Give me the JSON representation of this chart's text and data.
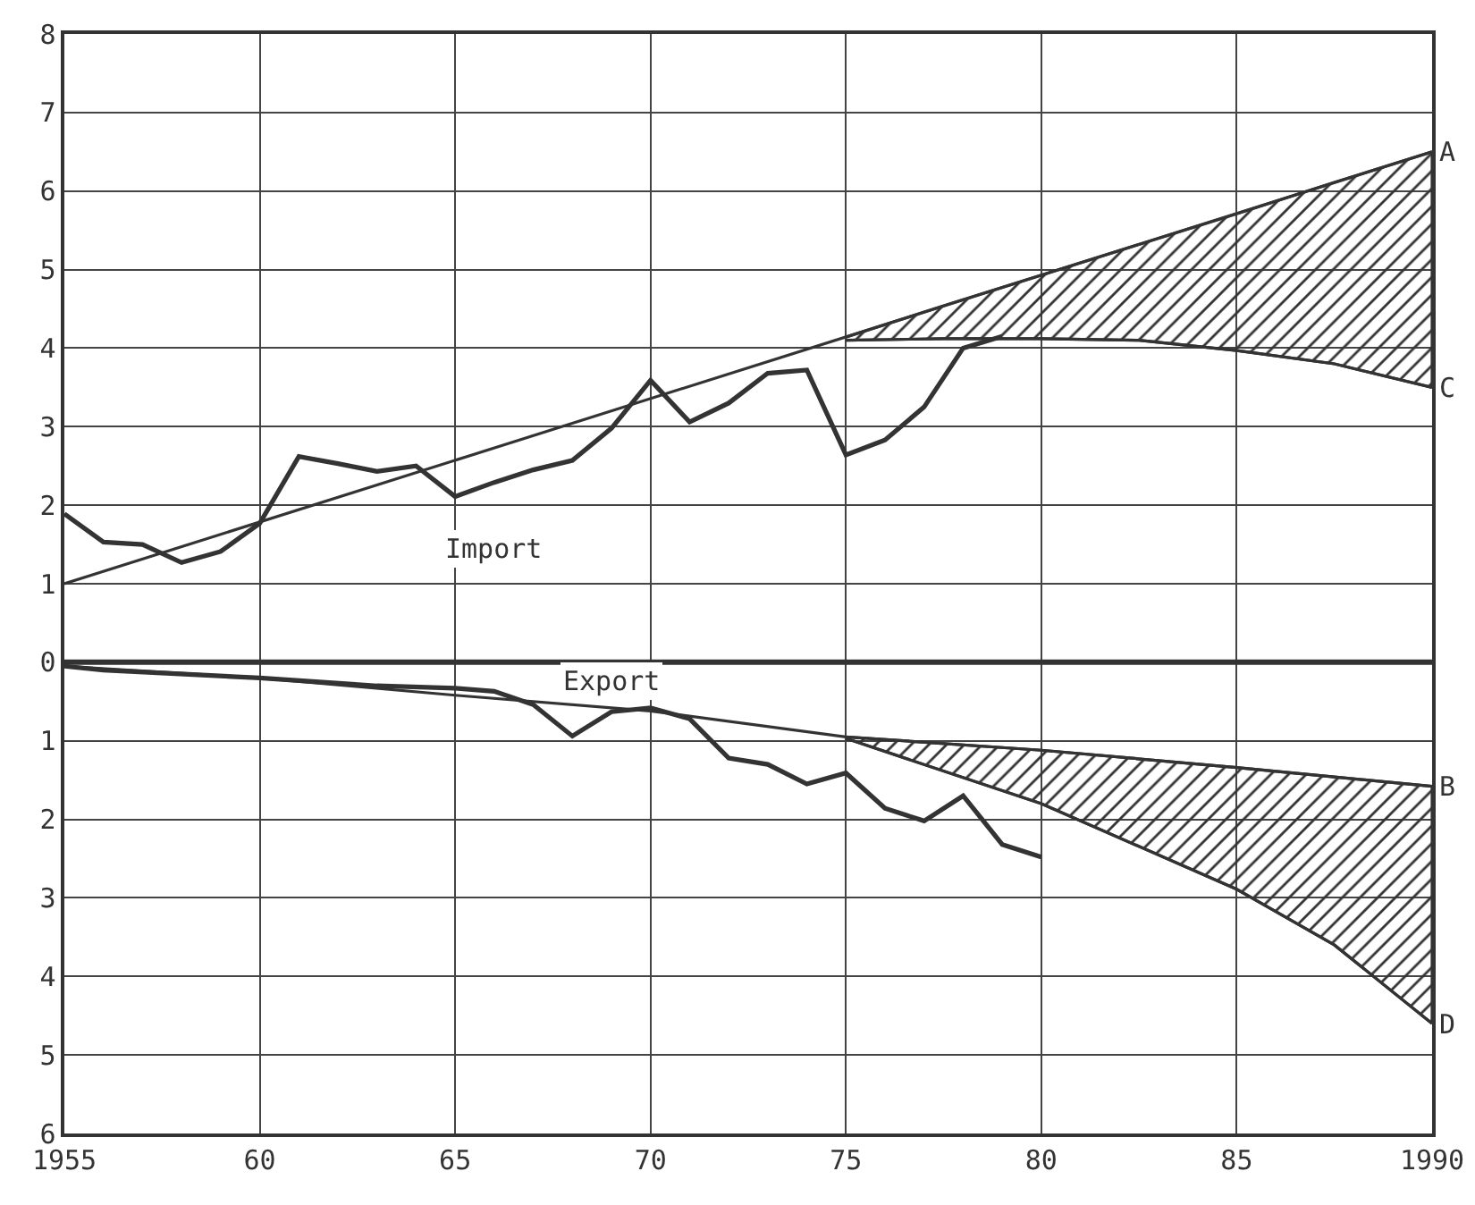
{
  "chart_data": {
    "type": "line",
    "xlim": [
      1955,
      1990
    ],
    "ylim": [
      -6,
      8
    ],
    "xticks": [
      1955,
      {
        "value": 1960,
        "label": "60"
      },
      {
        "value": 1965,
        "label": "65"
      },
      {
        "value": 1970,
        "label": "70"
      },
      {
        "value": 1975,
        "label": "75"
      },
      {
        "value": 1980,
        "label": "80"
      },
      {
        "value": 1985,
        "label": "85"
      },
      1990
    ],
    "yticks": [
      8,
      7,
      6,
      5,
      4,
      3,
      2,
      1,
      0,
      {
        "value": -1,
        "label": "1"
      },
      {
        "value": -2,
        "label": "2"
      },
      {
        "value": -3,
        "label": "3"
      },
      {
        "value": -4,
        "label": "4"
      },
      {
        "value": -5,
        "label": "5"
      },
      {
        "value": -6,
        "label": "6"
      }
    ],
    "grid": true,
    "legend": false,
    "marker": "none",
    "line_style": "solid",
    "ref_lines": [
      {
        "axis": "y",
        "value": 0,
        "color": "#333333"
      }
    ],
    "series": [
      {
        "name": "Import",
        "color": "#333333",
        "x": [
          1955,
          1956,
          1957,
          1958,
          1959,
          1960,
          1961,
          1962,
          1963,
          1964,
          1965,
          1966,
          1967,
          1968,
          1969,
          1970,
          1971,
          1972,
          1973,
          1974,
          1975,
          1976,
          1977,
          1978,
          1979
        ],
        "values": [
          1.89,
          1.53,
          1.5,
          1.27,
          1.41,
          1.77,
          2.62,
          2.53,
          2.43,
          2.5,
          2.11,
          2.29,
          2.45,
          2.57,
          2.98,
          3.59,
          3.06,
          3.3,
          3.68,
          3.72,
          2.64,
          2.83,
          3.25,
          4.0,
          4.15
        ]
      },
      {
        "name": "A",
        "color": "#333333",
        "x": [
          1955,
          1990
        ],
        "values": [
          1.0,
          6.5
        ]
      },
      {
        "name": "C",
        "color": "#333333",
        "x": [
          1975,
          1977.5,
          1980,
          1982.5,
          1985,
          1987.5,
          1990
        ],
        "values": [
          4.1,
          4.12,
          4.12,
          4.1,
          3.97,
          3.8,
          3.5
        ],
        "lower": [
          4.1,
          4.12,
          4.12,
          4.1,
          3.97,
          3.8,
          3.5
        ],
        "upper": [
          4.14,
          4.54,
          4.93,
          5.32,
          5.71,
          6.11,
          6.5
        ]
      },
      {
        "name": "Export",
        "color": "#333333",
        "x": [
          1955,
          1956,
          1960,
          1963,
          1965,
          1966,
          1967,
          1968,
          1969,
          1970,
          1971,
          1972,
          1973,
          1974,
          1975,
          1976,
          1977,
          1978,
          1979,
          1980
        ],
        "values": [
          -0.05,
          -0.1,
          -0.2,
          -0.3,
          -0.33,
          -0.37,
          -0.54,
          -0.94,
          -0.63,
          -0.58,
          -0.72,
          -1.22,
          -1.3,
          -1.55,
          -1.41,
          -1.86,
          -2.02,
          -1.7,
          -2.32,
          -2.48
        ]
      },
      {
        "name": "B",
        "color": "#333333",
        "x": [
          1955,
          1960,
          1965,
          1970,
          1975,
          1980,
          1985,
          1990
        ],
        "values": [
          -0.05,
          -0.2,
          -0.42,
          -0.62,
          -0.95,
          -1.12,
          -1.34,
          -1.58
        ]
      },
      {
        "name": "D",
        "color": "#333333",
        "x": [
          1975,
          1980,
          1985,
          1987.5,
          1990
        ],
        "values": [
          -0.97,
          -1.8,
          -2.89,
          -3.6,
          -4.6
        ],
        "lower": [
          -0.97,
          -1.8,
          -2.89,
          -3.6,
          -4.6
        ],
        "upper": [
          -0.95,
          -1.12,
          -1.34,
          -1.46,
          -1.58
        ]
      }
    ]
  }
}
